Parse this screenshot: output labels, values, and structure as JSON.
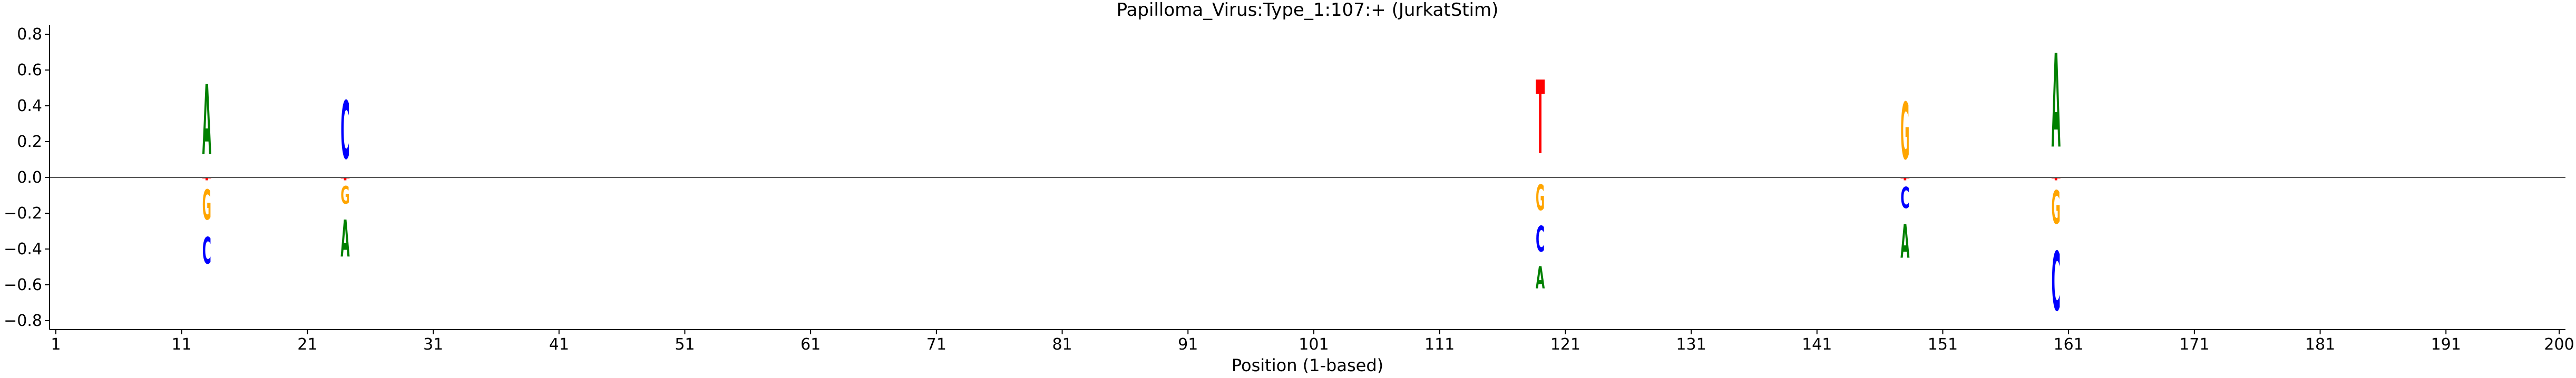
{
  "chart_data": {
    "type": "sequence-logo",
    "title": "Papilloma_Virus:Type_1:107:+  (JurkatStim)",
    "xlabel": "Position (1-based)",
    "ylabel": "",
    "xlim": [
      1,
      200
    ],
    "ylim": [
      -0.85,
      0.85
    ],
    "x_ticks": [
      1,
      11,
      21,
      31,
      41,
      51,
      61,
      71,
      81,
      91,
      101,
      111,
      121,
      131,
      141,
      151,
      161,
      171,
      181,
      191,
      200
    ],
    "y_ticks": [
      -0.8,
      -0.6,
      -0.4,
      -0.2,
      0.0,
      0.2,
      0.4,
      0.6,
      0.8
    ],
    "y_tick_labels": [
      "−0.8",
      "−0.6",
      "−0.4",
      "−0.2",
      "0.0",
      "0.2",
      "0.4",
      "0.6",
      "0.8"
    ],
    "zero_line": true,
    "base_colors": {
      "A": "#008000",
      "C": "#0000ff",
      "G": "#ffa500",
      "T": "#ff0000"
    },
    "positions": [
      {
        "x": 13,
        "up": [
          {
            "base": "A",
            "value": 0.63
          }
        ],
        "down": [
          {
            "base": "T",
            "value": 0.02
          },
          {
            "base": "G",
            "value": 0.27
          },
          {
            "base": "C",
            "value": 0.24
          }
        ]
      },
      {
        "x": 24,
        "up": [
          {
            "base": "C",
            "value": 0.52
          }
        ],
        "down": [
          {
            "base": "T",
            "value": 0.02
          },
          {
            "base": "G",
            "value": 0.16
          },
          {
            "base": "A",
            "value": 0.33
          }
        ]
      },
      {
        "x": 119,
        "up": [
          {
            "base": "T",
            "value": 0.66
          }
        ],
        "down": [
          {
            "base": "G",
            "value": 0.23
          },
          {
            "base": "C",
            "value": 0.23
          },
          {
            "base": "A",
            "value": 0.2
          }
        ]
      },
      {
        "x": 148,
        "up": [
          {
            "base": "G",
            "value": 0.51
          }
        ],
        "down": [
          {
            "base": "T",
            "value": 0.02
          },
          {
            "base": "C",
            "value": 0.19
          },
          {
            "base": "A",
            "value": 0.3
          }
        ]
      },
      {
        "x": 160,
        "up": [
          {
            "base": "A",
            "value": 0.84
          }
        ],
        "down": [
          {
            "base": "T",
            "value": 0.02
          },
          {
            "base": "G",
            "value": 0.3
          },
          {
            "base": "C",
            "value": 0.53
          }
        ]
      }
    ]
  }
}
